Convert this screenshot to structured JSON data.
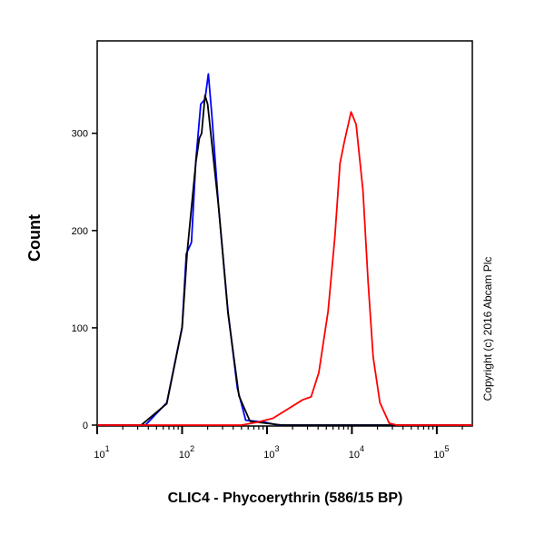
{
  "chart_data": {
    "type": "line",
    "title": "",
    "xlabel": "CLIC4 - Phycoerythrin (586/15 BP)",
    "ylabel": "Count",
    "xscale": "log",
    "xlim": [
      10,
      262144
    ],
    "ylim": [
      0,
      395
    ],
    "x_ticks": [
      10,
      100,
      1000,
      10000,
      100000
    ],
    "x_tick_labels": [
      {
        "base": "10",
        "exp": "1"
      },
      {
        "base": "10",
        "exp": "2"
      },
      {
        "base": "10",
        "exp": "3"
      },
      {
        "base": "10",
        "exp": "4"
      },
      {
        "base": "10",
        "exp": "5"
      }
    ],
    "y_ticks": [
      0,
      100,
      200,
      300
    ],
    "y_tick_labels": [
      "0",
      "100",
      "200",
      "300"
    ],
    "grid": false,
    "legend": "none",
    "series": [
      {
        "color": "#0000ff",
        "x": [
          37,
          66,
          100,
          112,
          129,
          145,
          166,
          186,
          204,
          224,
          269,
          347,
          447,
          562,
          933,
          1349
        ],
        "y": [
          0,
          23,
          101,
          176,
          188,
          272,
          330,
          335,
          361,
          319,
          225,
          117,
          38,
          5,
          3,
          0
        ]
      },
      {
        "color": "#000000",
        "x": [
          33,
          66,
          100,
          115,
          145,
          160,
          170,
          186,
          200,
          269,
          347,
          468,
          631,
          1175,
          1514
        ],
        "y": [
          0,
          22,
          100,
          178,
          270,
          295,
          300,
          339,
          330,
          225,
          115,
          30,
          4,
          1,
          0
        ]
      },
      {
        "color": "#ff0000",
        "x": [
          501,
          776,
          1175,
          2630,
          3311,
          4074,
          5248,
          6310,
          7244,
          8128,
          9772,
          11220,
          13490,
          15490,
          17780,
          21380,
          27540,
          33880
        ],
        "y": [
          0,
          3,
          7,
          26,
          29,
          54,
          117,
          194,
          269,
          291,
          322,
          309,
          241,
          148,
          70,
          23,
          2,
          0
        ]
      }
    ]
  },
  "copyright": "Copyright (c) 2016 Abcam Plc"
}
